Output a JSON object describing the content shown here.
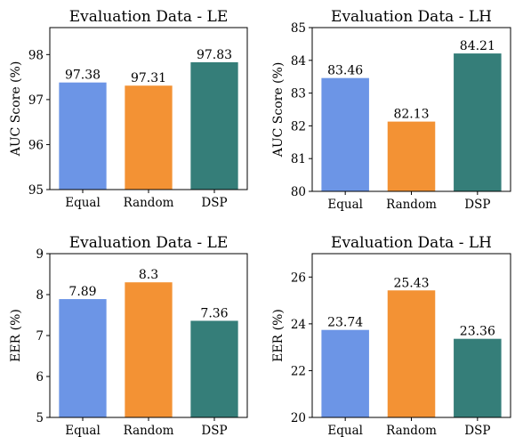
{
  "palette": {
    "Equal": "#6c95e6",
    "Random": "#f39234",
    "DSP": "#357e79"
  },
  "chart_data": [
    {
      "type": "bar",
      "title": "Evaluation Data - LE",
      "ylabel": "AUC Score (%)",
      "xlabel": "",
      "categories": [
        "Equal",
        "Random",
        "DSP"
      ],
      "values": [
        97.38,
        97.31,
        97.83
      ],
      "value_labels": [
        "97.38",
        "97.31",
        "97.83"
      ],
      "ylim": [
        95,
        98.6
      ],
      "yticks": [
        95,
        96,
        97,
        98
      ],
      "ytick_labels": [
        "95",
        "96",
        "97",
        "98"
      ],
      "grid": false,
      "legend": "none"
    },
    {
      "type": "bar",
      "title": "Evaluation Data - LH",
      "ylabel": "AUC Score (%)",
      "xlabel": "",
      "categories": [
        "Equal",
        "Random",
        "DSP"
      ],
      "values": [
        83.46,
        82.13,
        84.21
      ],
      "value_labels": [
        "83.46",
        "82.13",
        "84.21"
      ],
      "ylim": [
        80,
        85
      ],
      "yticks": [
        80,
        81,
        82,
        83,
        84,
        85
      ],
      "ytick_labels": [
        "80",
        "81",
        "82",
        "83",
        "84",
        "85"
      ],
      "grid": false,
      "legend": "none"
    },
    {
      "type": "bar",
      "title": "Evaluation Data - LE",
      "ylabel": "EER (%)",
      "xlabel": "",
      "categories": [
        "Equal",
        "Random",
        "DSP"
      ],
      "values": [
        7.89,
        8.3,
        7.36
      ],
      "value_labels": [
        "7.89",
        "8.3",
        "7.36"
      ],
      "ylim": [
        5,
        9
      ],
      "yticks": [
        5,
        6,
        7,
        8,
        9
      ],
      "ytick_labels": [
        "5",
        "6",
        "7",
        "8",
        "9"
      ],
      "grid": false,
      "legend": "none"
    },
    {
      "type": "bar",
      "title": "Evaluation Data - LH",
      "ylabel": "EER (%)",
      "xlabel": "",
      "categories": [
        "Equal",
        "Random",
        "DSP"
      ],
      "values": [
        23.74,
        25.43,
        23.36
      ],
      "value_labels": [
        "23.74",
        "25.43",
        "23.36"
      ],
      "ylim": [
        20,
        27
      ],
      "yticks": [
        20,
        22,
        24,
        26
      ],
      "ytick_labels": [
        "20",
        "22",
        "24",
        "26"
      ],
      "grid": false,
      "legend": "none"
    }
  ]
}
